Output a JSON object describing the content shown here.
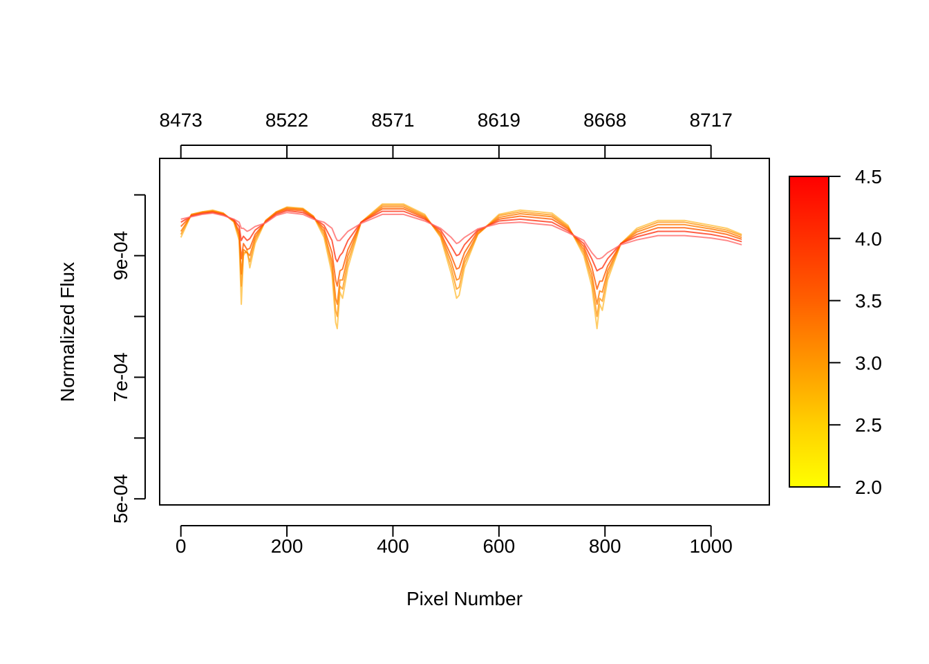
{
  "chart_data": {
    "type": "line",
    "title": "",
    "xlabel": "Pixel Number",
    "ylabel": "Normalized Flux",
    "xlim": [
      -40,
      1110
    ],
    "ylim": [
      0.00049,
      0.00106
    ],
    "x_ticks": [
      0,
      200,
      400,
      600,
      800,
      1000
    ],
    "x_tick_labels": [
      "0",
      "200",
      "400",
      "600",
      "800",
      "1000"
    ],
    "top_axis_ticks": [
      0,
      200,
      400,
      600,
      800,
      1000
    ],
    "top_axis_labels": [
      "8473",
      "8522",
      "8571",
      "8619",
      "8668",
      "8717"
    ],
    "y_ticks": [
      0.0005,
      0.0006,
      0.0007,
      0.0008,
      0.0009,
      0.001
    ],
    "y_tick_labels": [
      "5e-04",
      "",
      "7e-04",
      "",
      "9e-04",
      ""
    ],
    "grid": false,
    "colorbar": {
      "range": [
        2.0,
        4.5
      ],
      "ticks": [
        2.0,
        2.5,
        3.0,
        3.5,
        4.0,
        4.5
      ],
      "tick_labels": [
        "2.0",
        "2.5",
        "3.0",
        "3.5",
        "4.0",
        "4.5"
      ],
      "colors": [
        "#ffff00",
        "#ffd000",
        "#ff9800",
        "#ff6000",
        "#ff3000",
        "#ff0000"
      ]
    },
    "x": [
      0,
      20,
      40,
      60,
      80,
      100,
      110,
      114,
      118,
      125,
      130,
      140,
      160,
      180,
      200,
      230,
      250,
      270,
      285,
      292,
      295,
      300,
      305,
      315,
      340,
      380,
      420,
      460,
      490,
      510,
      520,
      525,
      535,
      560,
      600,
      640,
      700,
      730,
      760,
      775,
      785,
      790,
      795,
      805,
      830,
      860,
      900,
      950,
      1000,
      1030,
      1058
    ],
    "series": [
      {
        "values": [
          0.00093,
          0.000968,
          0.000972,
          0.000975,
          0.00097,
          0.000955,
          0.000925,
          0.00082,
          0.0009,
          0.00091,
          0.00088,
          0.00092,
          0.000958,
          0.000972,
          0.00098,
          0.000978,
          0.000965,
          0.00093,
          0.00087,
          0.00079,
          0.00078,
          0.00084,
          0.00083,
          0.00088,
          0.000955,
          0.000985,
          0.000985,
          0.000968,
          0.00093,
          0.00087,
          0.00083,
          0.000835,
          0.00088,
          0.000935,
          0.000968,
          0.000975,
          0.00097,
          0.00095,
          0.0009,
          0.00085,
          0.00078,
          0.00082,
          0.00081,
          0.00086,
          0.00092,
          0.000945,
          0.000958,
          0.000958,
          0.00095,
          0.000945,
          0.000935
        ]
      },
      {
        "values": [
          0.000935,
          0.000968,
          0.000972,
          0.000974,
          0.00097,
          0.000956,
          0.00093,
          0.00085,
          0.000905,
          0.000905,
          0.00089,
          0.000925,
          0.000958,
          0.000972,
          0.000979,
          0.000977,
          0.000965,
          0.000935,
          0.00088,
          0.00081,
          0.0008,
          0.00085,
          0.000845,
          0.00089,
          0.000955,
          0.000983,
          0.000983,
          0.000966,
          0.000932,
          0.00088,
          0.000845,
          0.000848,
          0.000888,
          0.000935,
          0.000966,
          0.000972,
          0.000967,
          0.000948,
          0.000905,
          0.00086,
          0.0008,
          0.00083,
          0.000825,
          0.000868,
          0.00092,
          0.000942,
          0.000955,
          0.000955,
          0.000947,
          0.000942,
          0.000933
        ]
      },
      {
        "values": [
          0.00094,
          0.000967,
          0.000971,
          0.000973,
          0.000969,
          0.000957,
          0.000935,
          0.00087,
          0.00091,
          0.000905,
          0.0009,
          0.00093,
          0.000957,
          0.000971,
          0.000978,
          0.000976,
          0.000964,
          0.00094,
          0.00089,
          0.00083,
          0.00082,
          0.00086,
          0.00086,
          0.0009,
          0.000955,
          0.00098,
          0.00098,
          0.000964,
          0.000935,
          0.00089,
          0.00086,
          0.000862,
          0.000895,
          0.000937,
          0.000963,
          0.000969,
          0.000964,
          0.000946,
          0.00091,
          0.00087,
          0.00082,
          0.000842,
          0.00084,
          0.000875,
          0.00092,
          0.000939,
          0.000951,
          0.000951,
          0.000944,
          0.000939,
          0.00093
        ]
      },
      {
        "values": [
          0.000948,
          0.000966,
          0.00097,
          0.000972,
          0.000968,
          0.000958,
          0.00094,
          0.000895,
          0.00092,
          0.00091,
          0.000912,
          0.000935,
          0.000956,
          0.00097,
          0.000976,
          0.000974,
          0.000963,
          0.000945,
          0.000905,
          0.00086,
          0.00085,
          0.000875,
          0.000878,
          0.00091,
          0.000955,
          0.000977,
          0.000977,
          0.000962,
          0.000938,
          0.0009,
          0.000878,
          0.00088,
          0.000905,
          0.00094,
          0.00096,
          0.000965,
          0.00096,
          0.000944,
          0.000915,
          0.000882,
          0.000845,
          0.000858,
          0.000858,
          0.000883,
          0.00092,
          0.000935,
          0.000946,
          0.000946,
          0.00094,
          0.000935,
          0.000927
        ]
      },
      {
        "values": [
          0.000955,
          0.000965,
          0.000969,
          0.000971,
          0.000967,
          0.000959,
          0.000948,
          0.000925,
          0.000932,
          0.000925,
          0.000928,
          0.000942,
          0.000955,
          0.000968,
          0.000974,
          0.000971,
          0.000962,
          0.00095,
          0.000925,
          0.000895,
          0.00089,
          0.0009,
          0.000905,
          0.000925,
          0.000955,
          0.000973,
          0.000973,
          0.00096,
          0.000942,
          0.000915,
          0.0009,
          0.000902,
          0.000918,
          0.000942,
          0.000957,
          0.00096,
          0.000955,
          0.000941,
          0.00092,
          0.000895,
          0.000875,
          0.000878,
          0.00088,
          0.000895,
          0.00092,
          0.000931,
          0.00094,
          0.00094,
          0.000935,
          0.00093,
          0.000923
        ]
      },
      {
        "values": [
          0.00096,
          0.000964,
          0.000968,
          0.00097,
          0.000966,
          0.00096,
          0.000955,
          0.000945,
          0.000945,
          0.00094,
          0.000942,
          0.000948,
          0.000954,
          0.000966,
          0.000971,
          0.000968,
          0.00096,
          0.000955,
          0.000945,
          0.00093,
          0.000925,
          0.000925,
          0.00093,
          0.00094,
          0.000953,
          0.000968,
          0.000968,
          0.000957,
          0.000945,
          0.00093,
          0.00092,
          0.000922,
          0.00093,
          0.000944,
          0.000953,
          0.000955,
          0.00095,
          0.000938,
          0.000925,
          0.000905,
          0.000895,
          0.000895,
          0.000897,
          0.000905,
          0.000918,
          0.000926,
          0.000933,
          0.000933,
          0.000929,
          0.000925,
          0.000918
        ]
      }
    ]
  }
}
